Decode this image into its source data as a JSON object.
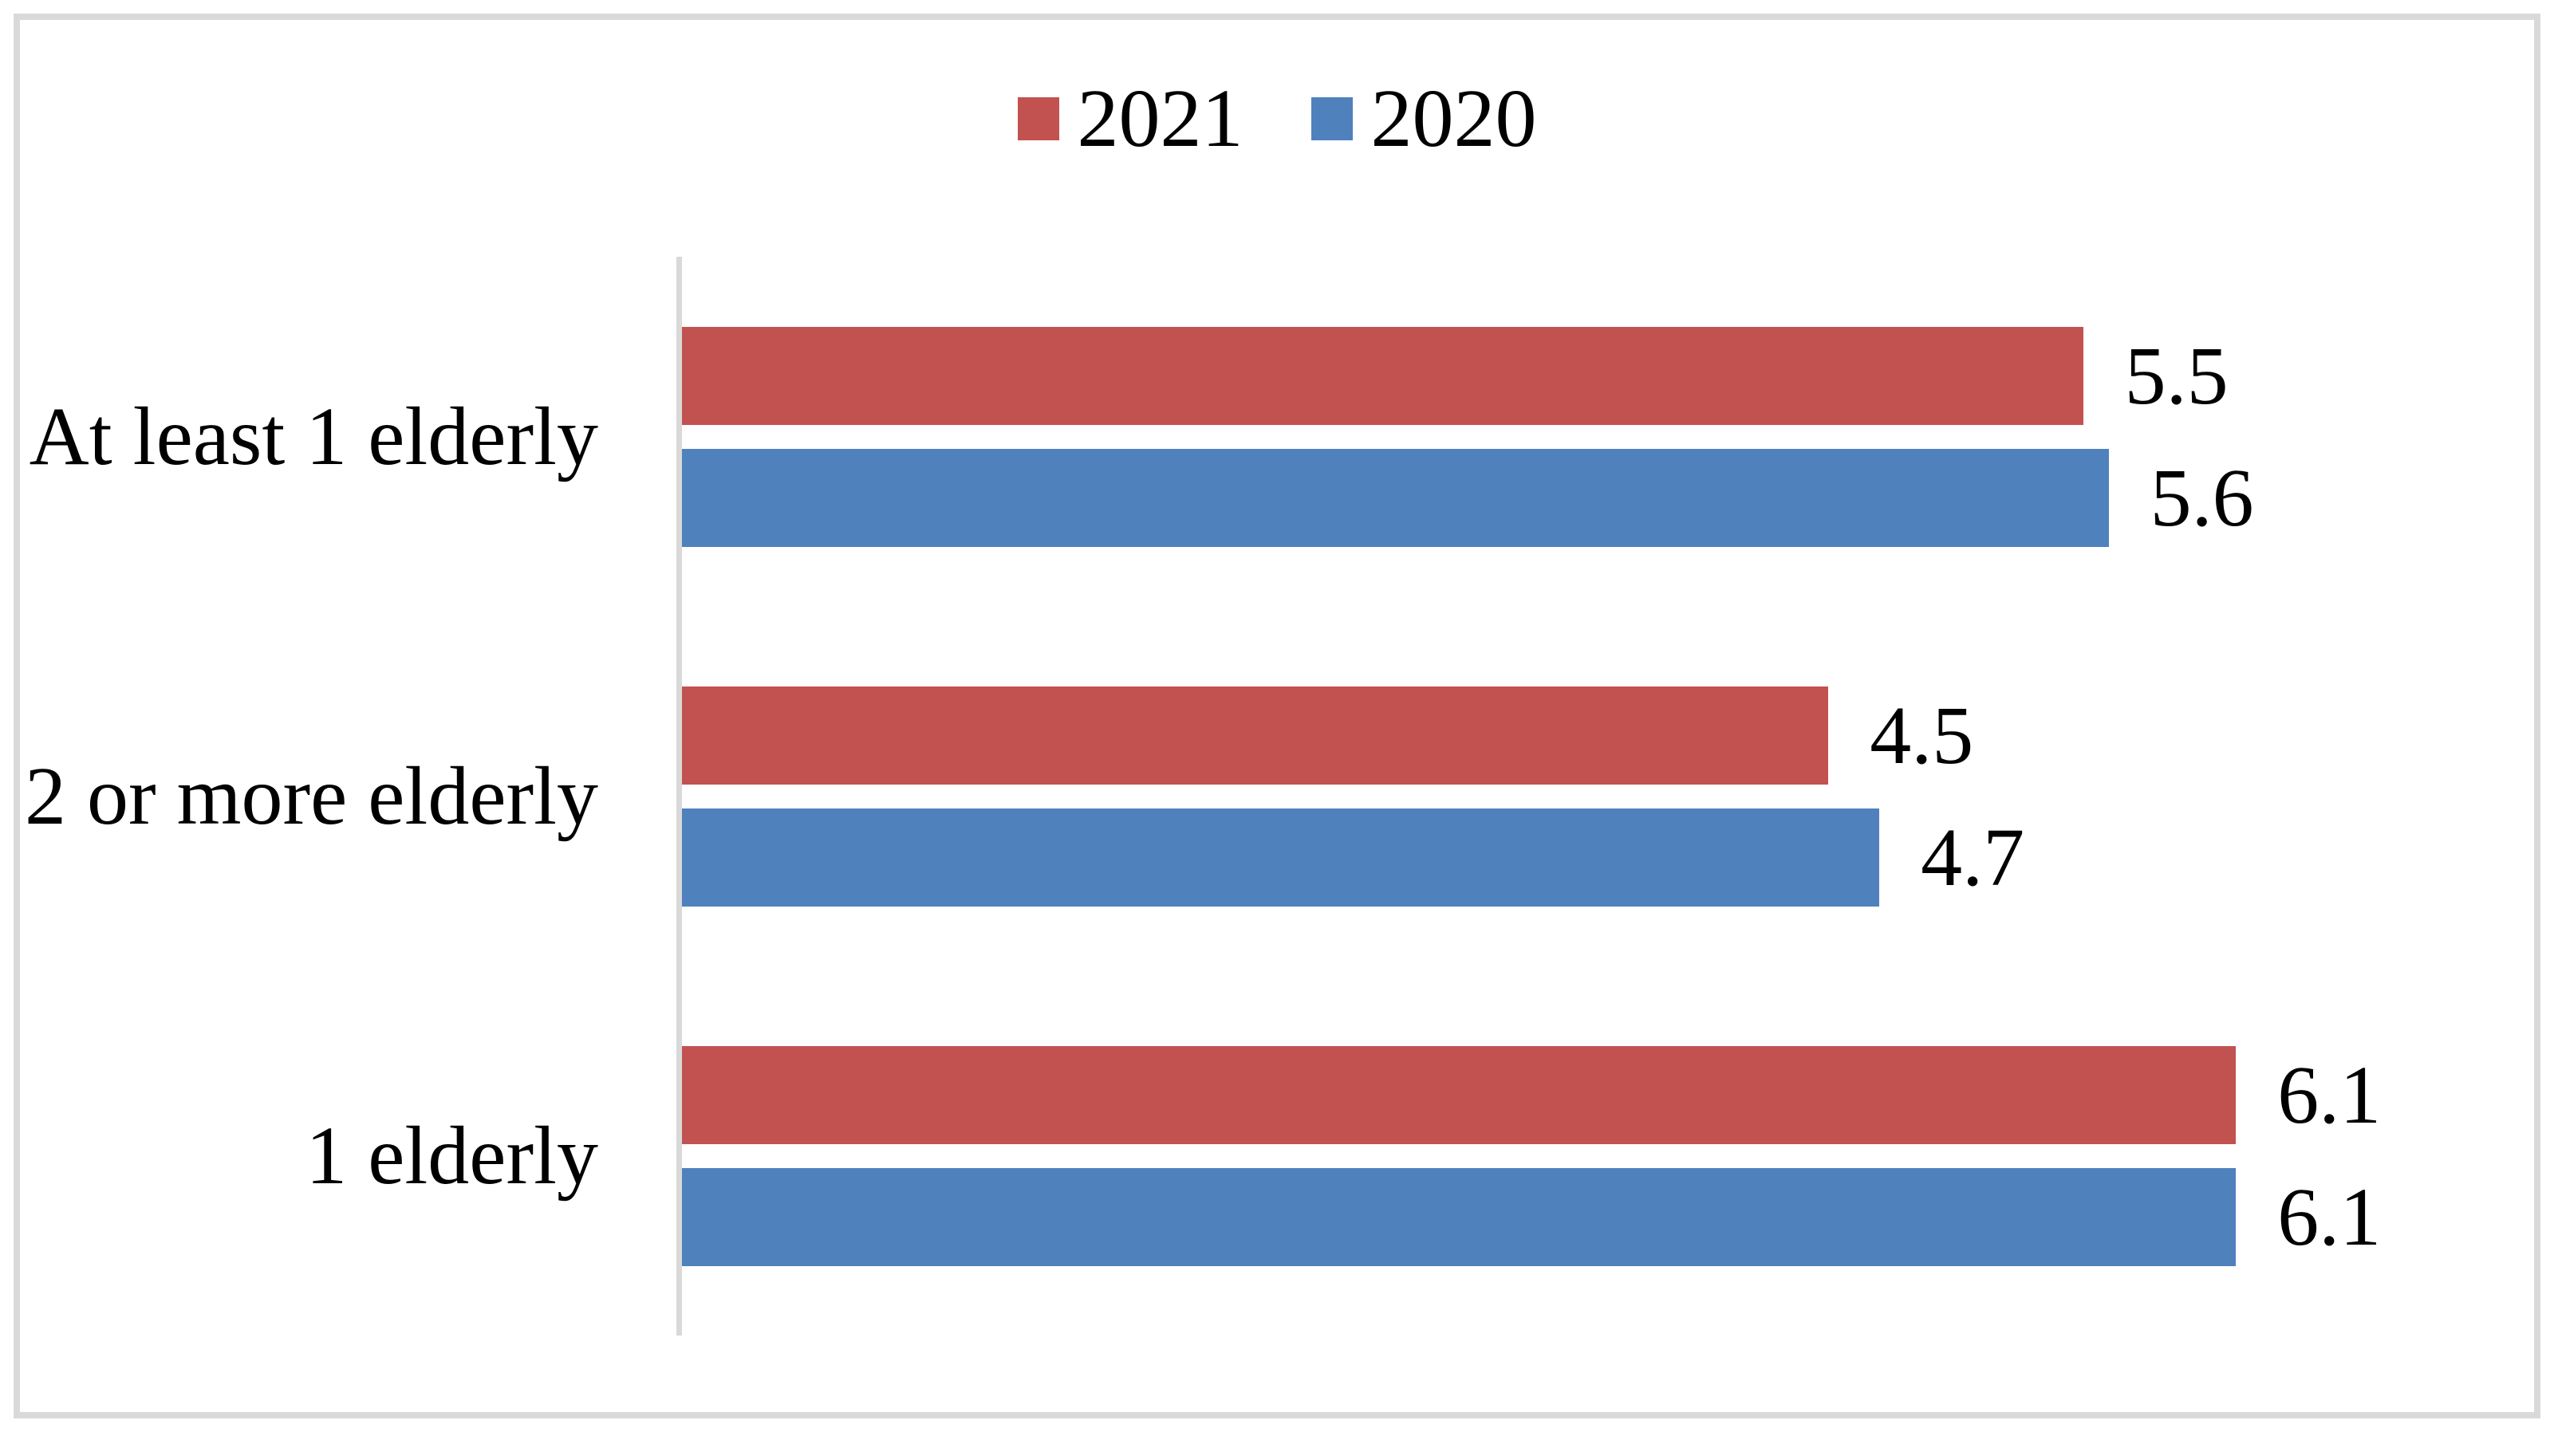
{
  "chart_data": {
    "type": "bar",
    "orientation": "horizontal",
    "title": "",
    "xlabel": "",
    "ylabel": "",
    "categories": [
      "At least 1 elderly",
      "2 or more elderly",
      "1 elderly"
    ],
    "series": [
      {
        "name": "2021",
        "color": "#C25250",
        "values": [
          5.5,
          4.5,
          6.1
        ]
      },
      {
        "name": "2020",
        "color": "#4F81BD",
        "values": [
          5.6,
          4.7,
          6.1
        ]
      }
    ],
    "xlim": [
      0,
      7.27
    ],
    "grid": false,
    "data_labels": true,
    "legend_position": "top-center"
  },
  "frame": {
    "border_color": "#D9D9D9",
    "axis_color": "#D9D9D9",
    "background": "#FFFFFF",
    "text_color": "#000000"
  }
}
